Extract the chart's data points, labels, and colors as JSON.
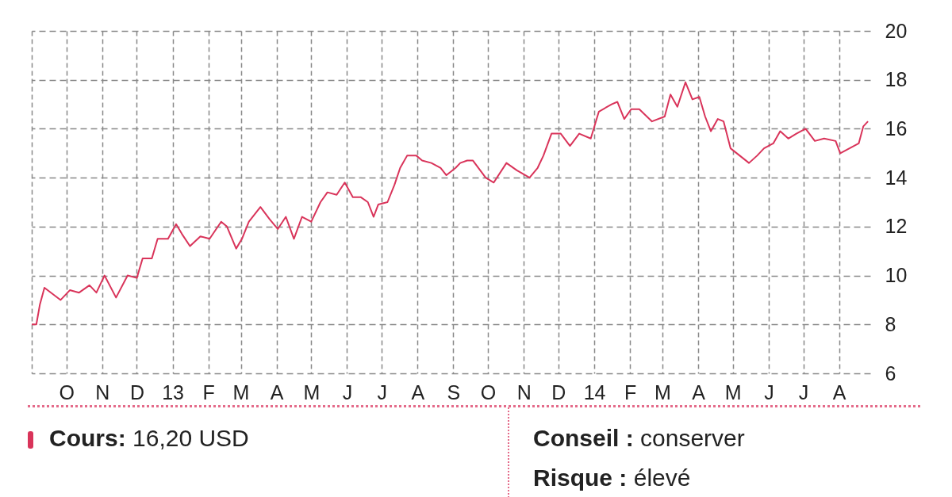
{
  "chart_data": {
    "type": "line",
    "x": [
      "2012-09-01",
      "2012-09-05",
      "2012-09-08",
      "2012-09-12",
      "2012-09-26",
      "2012-10-04",
      "2012-10-12",
      "2012-10-21",
      "2012-10-27",
      "2012-11-03",
      "2012-11-13",
      "2012-11-23",
      "2012-12-01",
      "2012-12-06",
      "2012-12-14",
      "2012-12-19",
      "2012-12-28",
      "2013-01-04",
      "2013-01-09",
      "2013-01-16",
      "2013-01-25",
      "2013-02-02",
      "2013-02-12",
      "2013-02-17",
      "2013-02-25",
      "2013-03-02",
      "2013-03-08",
      "2013-03-18",
      "2013-03-26",
      "2013-04-02",
      "2013-04-09",
      "2013-04-16",
      "2013-04-23",
      "2013-05-01",
      "2013-05-09",
      "2013-05-15",
      "2013-05-23",
      "2013-05-30",
      "2013-06-06",
      "2013-06-13",
      "2013-06-19",
      "2013-06-24",
      "2013-06-28",
      "2013-07-06",
      "2013-07-12",
      "2013-07-17",
      "2013-07-23",
      "2013-07-31",
      "2013-08-05",
      "2013-08-13",
      "2013-08-21",
      "2013-08-26",
      "2013-09-03",
      "2013-09-07",
      "2013-09-13",
      "2013-09-18",
      "2013-09-29",
      "2013-10-06",
      "2013-10-17",
      "2013-10-26",
      "2013-11-06",
      "2013-11-13",
      "2013-11-18",
      "2013-11-25",
      "2013-12-03",
      "2013-12-11",
      "2013-12-19",
      "2013-12-29",
      "2014-01-05",
      "2014-01-16",
      "2014-01-21",
      "2014-01-27",
      "2014-02-02",
      "2014-02-09",
      "2014-02-20",
      "2014-03-03",
      "2014-03-08",
      "2014-03-14",
      "2014-03-21",
      "2014-03-27",
      "2014-04-02",
      "2014-04-07",
      "2014-04-12",
      "2014-04-18",
      "2014-04-23",
      "2014-04-29",
      "2014-05-07",
      "2014-05-15",
      "2014-05-22",
      "2014-05-28",
      "2014-06-05",
      "2014-06-11",
      "2014-06-18",
      "2014-06-25",
      "2014-07-03",
      "2014-07-11",
      "2014-07-19",
      "2014-07-29",
      "2014-08-02",
      "2014-08-10",
      "2014-08-18",
      "2014-08-22",
      "2014-08-26"
    ],
    "series": [
      {
        "color": "#d9345a",
        "values": [
          8.0,
          8.0,
          8.8,
          9.5,
          9.0,
          9.4,
          9.3,
          9.6,
          9.3,
          10.0,
          9.1,
          10.0,
          9.9,
          10.7,
          10.7,
          11.5,
          11.5,
          12.1,
          11.7,
          11.2,
          11.6,
          11.5,
          12.2,
          12.0,
          11.1,
          11.5,
          12.2,
          12.8,
          12.3,
          11.9,
          12.4,
          11.5,
          12.4,
          12.2,
          13.0,
          13.4,
          13.3,
          13.8,
          13.2,
          13.2,
          13.0,
          12.4,
          12.9,
          13.0,
          13.7,
          14.4,
          14.9,
          14.9,
          14.7,
          14.6,
          14.4,
          14.1,
          14.4,
          14.6,
          14.7,
          14.7,
          14.0,
          13.8,
          14.6,
          14.3,
          14.0,
          14.4,
          14.9,
          15.8,
          15.8,
          15.3,
          15.8,
          15.6,
          16.7,
          17.0,
          17.1,
          16.4,
          16.8,
          16.8,
          16.3,
          16.5,
          17.4,
          16.9,
          17.9,
          17.2,
          17.3,
          16.5,
          15.9,
          16.4,
          16.3,
          15.2,
          14.9,
          14.6,
          14.9,
          15.2,
          15.4,
          15.9,
          15.6,
          15.8,
          16.0,
          15.5,
          15.6,
          15.5,
          15.0,
          15.2,
          15.4,
          16.1,
          16.3
        ]
      }
    ],
    "xlim": [
      "2012-09-01",
      "2014-08-28"
    ],
    "xticks": [
      {
        "value": "2012-09-01",
        "label": null
      },
      {
        "value": "2012-10-01",
        "label": "O"
      },
      {
        "value": "2012-11-01",
        "label": "N"
      },
      {
        "value": "2012-12-01",
        "label": "D"
      },
      {
        "value": "2013-01-01",
        "label": "13"
      },
      {
        "value": "2013-02-01",
        "label": "F"
      },
      {
        "value": "2013-03-01",
        "label": "M"
      },
      {
        "value": "2013-04-01",
        "label": "A"
      },
      {
        "value": "2013-05-01",
        "label": "M"
      },
      {
        "value": "2013-06-01",
        "label": "J"
      },
      {
        "value": "2013-07-01",
        "label": "J"
      },
      {
        "value": "2013-08-01",
        "label": "A"
      },
      {
        "value": "2013-09-01",
        "label": "S"
      },
      {
        "value": "2013-10-01",
        "label": "O"
      },
      {
        "value": "2013-11-01",
        "label": "N"
      },
      {
        "value": "2013-12-01",
        "label": "D"
      },
      {
        "value": "2014-01-01",
        "label": "14"
      },
      {
        "value": "2014-02-01",
        "label": "F"
      },
      {
        "value": "2014-03-01",
        "label": "M"
      },
      {
        "value": "2014-04-01",
        "label": "A"
      },
      {
        "value": "2014-05-01",
        "label": "M"
      },
      {
        "value": "2014-06-01",
        "label": "J"
      },
      {
        "value": "2014-07-01",
        "label": "J"
      },
      {
        "value": "2014-08-01",
        "label": "A"
      }
    ],
    "ylim": [
      6,
      20
    ],
    "yticks": [
      6,
      8,
      10,
      12,
      14,
      16,
      18,
      20
    ],
    "grid": true,
    "line_style": "solid",
    "annotations": [
      "Cours: 16,20 USD",
      "Conseil : conserver",
      "Risque : élevé"
    ]
  }
}
